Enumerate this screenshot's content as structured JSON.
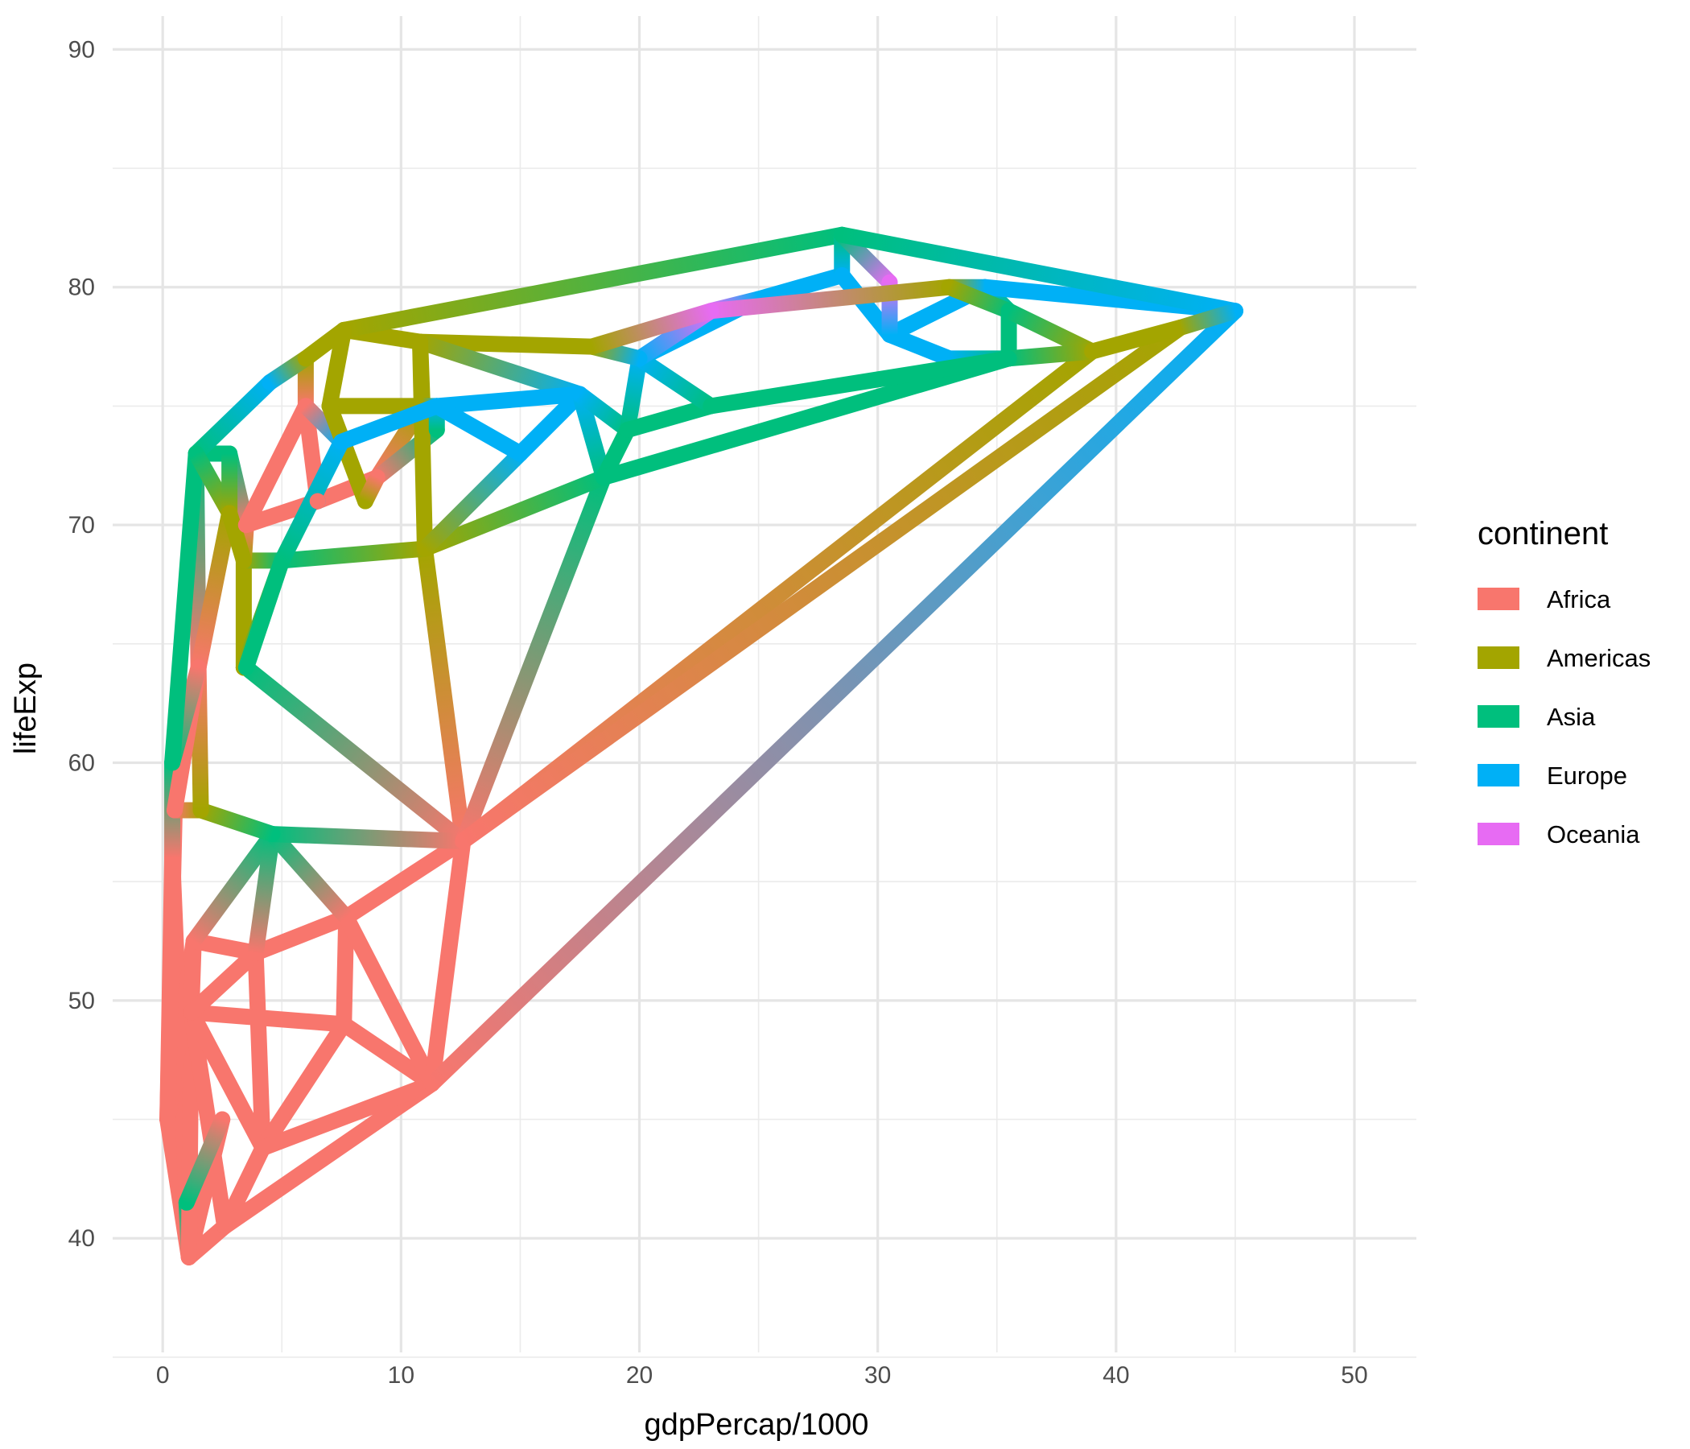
{
  "chart_data": {
    "type": "line",
    "xlabel": "gdpPercap/1000",
    "ylabel": "lifeExp",
    "xlim": [
      -2.1,
      52.6
    ],
    "ylim": [
      35.2,
      91.4
    ],
    "x_ticks": [
      0,
      10,
      20,
      30,
      40,
      50
    ],
    "y_ticks": [
      40,
      50,
      60,
      70,
      80,
      90
    ],
    "grid": true,
    "legend": {
      "title": "continent",
      "placement": "right",
      "entries": [
        {
          "name": "Africa",
          "color": "#F8766D"
        },
        {
          "name": "Americas",
          "color": "#A3A500"
        },
        {
          "name": "Asia",
          "color": "#00BF7D"
        },
        {
          "name": "Europe",
          "color": "#00B0F6"
        },
        {
          "name": "Oceania",
          "color": "#E76BF3"
        }
      ]
    },
    "points": [
      {
        "id": 0,
        "x": 1.1,
        "y": 39.2,
        "c": "Africa"
      },
      {
        "id": 1,
        "x": 0.2,
        "y": 45.0,
        "c": "Africa"
      },
      {
        "id": 2,
        "x": 0.4,
        "y": 56.0,
        "c": "Africa"
      },
      {
        "id": 3,
        "x": 2.6,
        "y": 40.5,
        "c": "Africa"
      },
      {
        "id": 4,
        "x": 4.2,
        "y": 43.8,
        "c": "Africa"
      },
      {
        "id": 5,
        "x": 1.2,
        "y": 49.5,
        "c": "Africa"
      },
      {
        "id": 6,
        "x": 1.3,
        "y": 52.5,
        "c": "Africa"
      },
      {
        "id": 7,
        "x": 3.9,
        "y": 52.0,
        "c": "Africa"
      },
      {
        "id": 8,
        "x": 7.6,
        "y": 49.0,
        "c": "Africa"
      },
      {
        "id": 9,
        "x": 7.7,
        "y": 53.5,
        "c": "Africa"
      },
      {
        "id": 10,
        "x": 11.3,
        "y": 46.5,
        "c": "Africa"
      },
      {
        "id": 11,
        "x": 12.6,
        "y": 56.7,
        "c": "Africa"
      },
      {
        "id": 12,
        "x": 1.5,
        "y": 64.0,
        "c": "Africa"
      },
      {
        "id": 13,
        "x": 3.5,
        "y": 70.0,
        "c": "Africa"
      },
      {
        "id": 14,
        "x": 6.0,
        "y": 75.0,
        "c": "Africa"
      },
      {
        "id": 15,
        "x": 9.0,
        "y": 72.0,
        "c": "Africa"
      },
      {
        "id": 16,
        "x": 6.5,
        "y": 71.0,
        "c": "Africa"
      },
      {
        "id": 17,
        "x": 0.5,
        "y": 58.0,
        "c": "Africa"
      },
      {
        "id": 18,
        "x": 2.5,
        "y": 45.0,
        "c": "Africa"
      },
      {
        "id": 19,
        "x": 1.6,
        "y": 58.0,
        "c": "Americas"
      },
      {
        "id": 20,
        "x": 3.4,
        "y": 64.0,
        "c": "Americas"
      },
      {
        "id": 21,
        "x": 3.4,
        "y": 68.5,
        "c": "Americas"
      },
      {
        "id": 22,
        "x": 2.8,
        "y": 70.5,
        "c": "Americas"
      },
      {
        "id": 23,
        "x": 6.0,
        "y": 77.0,
        "c": "Americas"
      },
      {
        "id": 24,
        "x": 7.6,
        "y": 78.2,
        "c": "Americas"
      },
      {
        "id": 25,
        "x": 11.0,
        "y": 69.0,
        "c": "Americas"
      },
      {
        "id": 26,
        "x": 10.8,
        "y": 77.7,
        "c": "Americas"
      },
      {
        "id": 27,
        "x": 10.9,
        "y": 75.0,
        "c": "Americas"
      },
      {
        "id": 28,
        "x": 7.0,
        "y": 75.0,
        "c": "Americas"
      },
      {
        "id": 29,
        "x": 8.5,
        "y": 71.0,
        "c": "Americas"
      },
      {
        "id": 30,
        "x": 18.0,
        "y": 77.5,
        "c": "Americas"
      },
      {
        "id": 31,
        "x": 33.0,
        "y": 80.0,
        "c": "Americas"
      },
      {
        "id": 32,
        "x": 39.0,
        "y": 77.3,
        "c": "Americas"
      },
      {
        "id": 33,
        "x": 42.7,
        "y": 78.3,
        "c": "Americas"
      },
      {
        "id": 34,
        "x": 1.0,
        "y": 41.5,
        "c": "Asia"
      },
      {
        "id": 35,
        "x": 0.4,
        "y": 60.0,
        "c": "Asia"
      },
      {
        "id": 36,
        "x": 1.4,
        "y": 73.0,
        "c": "Asia"
      },
      {
        "id": 37,
        "x": 2.8,
        "y": 73.0,
        "c": "Asia"
      },
      {
        "id": 38,
        "x": 3.5,
        "y": 64.0,
        "c": "Asia"
      },
      {
        "id": 39,
        "x": 4.6,
        "y": 57.0,
        "c": "Asia"
      },
      {
        "id": 40,
        "x": 5.0,
        "y": 68.5,
        "c": "Asia"
      },
      {
        "id": 41,
        "x": 18.5,
        "y": 72.0,
        "c": "Asia"
      },
      {
        "id": 42,
        "x": 19.5,
        "y": 74.0,
        "c": "Asia"
      },
      {
        "id": 43,
        "x": 23.0,
        "y": 75.0,
        "c": "Asia"
      },
      {
        "id": 44,
        "x": 28.5,
        "y": 82.2,
        "c": "Asia"
      },
      {
        "id": 45,
        "x": 35.5,
        "y": 77.0,
        "c": "Asia"
      },
      {
        "id": 46,
        "x": 35.5,
        "y": 79.0,
        "c": "Asia"
      },
      {
        "id": 47,
        "x": 11.5,
        "y": 74.0,
        "c": "Asia"
      },
      {
        "id": 48,
        "x": 4.5,
        "y": 76.0,
        "c": "Europe"
      },
      {
        "id": 49,
        "x": 7.5,
        "y": 73.5,
        "c": "Europe"
      },
      {
        "id": 50,
        "x": 6.5,
        "y": 71.0,
        "c": "Europe"
      },
      {
        "id": 51,
        "x": 11.5,
        "y": 75.0,
        "c": "Europe"
      },
      {
        "id": 52,
        "x": 15.0,
        "y": 73.0,
        "c": "Europe"
      },
      {
        "id": 53,
        "x": 17.5,
        "y": 75.5,
        "c": "Europe"
      },
      {
        "id": 54,
        "x": 20.0,
        "y": 77.0,
        "c": "Europe"
      },
      {
        "id": 55,
        "x": 25.0,
        "y": 79.5,
        "c": "Europe"
      },
      {
        "id": 56,
        "x": 28.5,
        "y": 80.5,
        "c": "Europe"
      },
      {
        "id": 57,
        "x": 30.5,
        "y": 78.0,
        "c": "Europe"
      },
      {
        "id": 58,
        "x": 34.5,
        "y": 80.0,
        "c": "Europe"
      },
      {
        "id": 59,
        "x": 33.0,
        "y": 77.0,
        "c": "Europe"
      },
      {
        "id": 60,
        "x": 45.0,
        "y": 79.0,
        "c": "Europe"
      },
      {
        "id": 61,
        "x": 23.0,
        "y": 79.0,
        "c": "Oceania"
      },
      {
        "id": 62,
        "x": 30.5,
        "y": 80.2,
        "c": "Oceania"
      }
    ],
    "segments": [
      [
        0,
        1
      ],
      [
        0,
        2
      ],
      [
        0,
        3
      ],
      [
        0,
        34
      ],
      [
        0,
        18
      ],
      [
        0,
        5
      ],
      [
        1,
        2
      ],
      [
        1,
        5
      ],
      [
        1,
        6
      ],
      [
        1,
        17
      ],
      [
        2,
        17
      ],
      [
        2,
        35
      ],
      [
        3,
        4
      ],
      [
        3,
        10
      ],
      [
        3,
        5
      ],
      [
        4,
        5
      ],
      [
        4,
        7
      ],
      [
        4,
        8
      ],
      [
        4,
        10
      ],
      [
        5,
        8
      ],
      [
        5,
        6
      ],
      [
        5,
        7
      ],
      [
        6,
        7
      ],
      [
        6,
        39
      ],
      [
        7,
        9
      ],
      [
        7,
        39
      ],
      [
        8,
        9
      ],
      [
        8,
        10
      ],
      [
        9,
        10
      ],
      [
        9,
        11
      ],
      [
        9,
        39
      ],
      [
        10,
        11
      ],
      [
        10,
        60
      ],
      [
        11,
        25
      ],
      [
        11,
        38
      ],
      [
        11,
        39
      ],
      [
        11,
        41
      ],
      [
        11,
        32
      ],
      [
        11,
        33
      ],
      [
        18,
        34
      ],
      [
        19,
        17
      ],
      [
        19,
        39
      ],
      [
        19,
        12
      ],
      [
        17,
        12
      ],
      [
        12,
        36
      ],
      [
        12,
        22
      ],
      [
        12,
        35
      ],
      [
        35,
        36
      ],
      [
        36,
        37
      ],
      [
        36,
        48
      ],
      [
        36,
        22
      ],
      [
        37,
        13
      ],
      [
        37,
        22
      ],
      [
        38,
        20
      ],
      [
        20,
        21
      ],
      [
        20,
        38
      ],
      [
        20,
        40
      ],
      [
        21,
        40
      ],
      [
        21,
        13
      ],
      [
        21,
        22
      ],
      [
        13,
        16
      ],
      [
        13,
        14
      ],
      [
        14,
        23
      ],
      [
        14,
        16
      ],
      [
        14,
        49
      ],
      [
        15,
        16
      ],
      [
        15,
        27
      ],
      [
        15,
        47
      ],
      [
        16,
        50
      ],
      [
        48,
        23
      ],
      [
        23,
        24
      ],
      [
        24,
        26
      ],
      [
        24,
        44
      ],
      [
        24,
        28
      ],
      [
        26,
        30
      ],
      [
        26,
        27
      ],
      [
        26,
        53
      ],
      [
        27,
        28
      ],
      [
        28,
        29
      ],
      [
        29,
        15
      ],
      [
        25,
        40
      ],
      [
        25,
        26
      ],
      [
        25,
        41
      ],
      [
        25,
        52
      ],
      [
        38,
        40
      ],
      [
        40,
        49
      ],
      [
        47,
        51
      ],
      [
        51,
        53
      ],
      [
        51,
        52
      ],
      [
        52,
        53
      ],
      [
        53,
        41
      ],
      [
        53,
        42
      ],
      [
        41,
        42
      ],
      [
        41,
        45
      ],
      [
        42,
        54
      ],
      [
        42,
        43
      ],
      [
        54,
        55
      ],
      [
        54,
        43
      ],
      [
        55,
        56
      ],
      [
        56,
        44
      ],
      [
        56,
        57
      ],
      [
        57,
        59
      ],
      [
        57,
        58
      ],
      [
        58,
        46
      ],
      [
        58,
        60
      ],
      [
        59,
        45
      ],
      [
        44,
        62
      ],
      [
        44,
        60
      ],
      [
        62,
        57
      ],
      [
        61,
        54
      ],
      [
        61,
        55
      ],
      [
        61,
        31
      ],
      [
        31,
        58
      ],
      [
        31,
        46
      ],
      [
        45,
        46
      ],
      [
        46,
        32
      ],
      [
        45,
        32
      ],
      [
        32,
        33
      ],
      [
        33,
        60
      ],
      [
        43,
        45
      ],
      [
        30,
        54
      ],
      [
        30,
        61
      ],
      [
        27,
        51
      ],
      [
        49,
        51
      ],
      [
        50,
        16
      ]
    ]
  }
}
